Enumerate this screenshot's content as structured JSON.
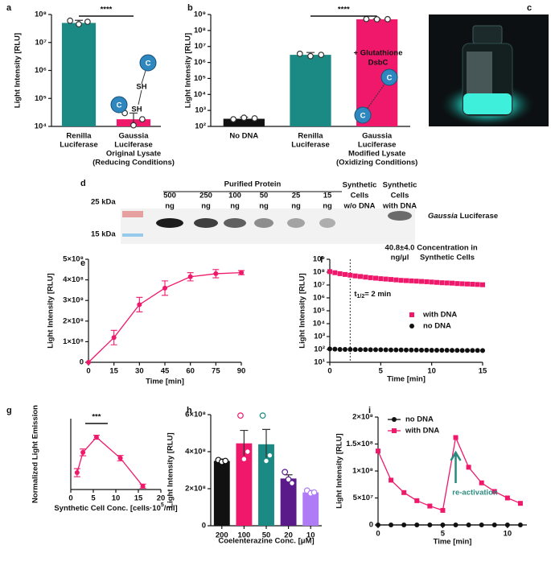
{
  "photo": {
    "panel": "c"
  },
  "gel": {
    "panel": "d",
    "group_label": "Purified Protein",
    "lanes": [
      [
        "500",
        "ng"
      ],
      [
        "250",
        "ng"
      ],
      [
        "100",
        "ng"
      ],
      [
        "50",
        "ng"
      ],
      [
        "25",
        "ng"
      ],
      [
        "15",
        "ng"
      ],
      [
        "Synthetic",
        "Cells",
        "w/o DNA"
      ],
      [
        "Synthetic",
        "Cells",
        "with DNA"
      ]
    ],
    "markers": [
      "25 kDa",
      "15 kDa"
    ],
    "band_label": [
      "Gaussia",
      "Luciferase"
    ],
    "concentration": [
      "40.8±4.0",
      "ng/μl"
    ],
    "concentration_label": [
      "Concentration in",
      "Synthetic Cells"
    ]
  },
  "chart_data": [
    {
      "type": "bar",
      "panel": "a",
      "y_label": "Light Intensity [RLU]",
      "log_y": true,
      "ylim": [
        10000,
        100000000
      ],
      "yticks": [
        {
          "value": 10000,
          "label": "10⁴"
        },
        {
          "value": 100000,
          "label": "10⁵"
        },
        {
          "value": 1000000,
          "label": "10⁶"
        },
        {
          "value": 10000000,
          "label": "10⁷"
        },
        {
          "value": 100000000,
          "label": "10⁸"
        }
      ],
      "categories": [
        [
          "Renilla",
          "Luciferase"
        ],
        [
          "Gaussia",
          "Luciferase",
          "Original Lysate",
          "(Reducing Conditions)"
        ]
      ],
      "values": [
        50000000,
        18000
      ],
      "errors": [
        12000000,
        12000
      ],
      "points": [
        [
          60000000,
          45000000,
          55000000
        ],
        [
          30000,
          11000,
          18000
        ]
      ],
      "colors": [
        "#1b8a84",
        "#f0186b"
      ],
      "significance": "****",
      "diagram_labels": [
        "C",
        "SH",
        "SH",
        "C"
      ]
    },
    {
      "type": "bar",
      "panel": "b",
      "y_label": "Light Intensity [RLU]",
      "log_y": true,
      "ylim": [
        100,
        1000000000
      ],
      "yticks": [
        {
          "value": 100,
          "label": "10²"
        },
        {
          "value": 1000,
          "label": "10³"
        },
        {
          "value": 10000,
          "label": "10⁴"
        },
        {
          "value": 100000,
          "label": "10⁵"
        },
        {
          "value": 1000000,
          "label": "10⁶"
        },
        {
          "value": 10000000,
          "label": "10⁷"
        },
        {
          "value": 100000000,
          "label": "10⁸"
        },
        {
          "value": 1000000000,
          "label": "10⁹"
        }
      ],
      "categories": [
        [
          "No DNA"
        ],
        [
          "Renilla",
          "Luciferase"
        ],
        [
          "Gaussia",
          "Luciferase",
          "Modified Lysate",
          "(Oxidizing Conditions)"
        ]
      ],
      "values": [
        300,
        3000000,
        500000000
      ],
      "errors": [
        80,
        1200000,
        40000000
      ],
      "points": [
        [
          280,
          350,
          320
        ],
        [
          3500000,
          2500000,
          3000000
        ],
        [
          520000000,
          500000000,
          510000000
        ]
      ],
      "colors": [
        "#111111",
        "#1b8a84",
        "#f0186b"
      ],
      "significance": "****",
      "annotation": [
        "+ Glutathione",
        "DsbC"
      ],
      "diagram_labels": [
        "C",
        "C"
      ]
    },
    {
      "type": "line",
      "panel": "e",
      "y_label": "Light Intensity [RLU]",
      "x_label": "Time [min]",
      "x": [
        0,
        15,
        30,
        45,
        60,
        75,
        90
      ],
      "xlim": [
        0,
        90
      ],
      "xticks": [
        0,
        15,
        30,
        45,
        60,
        75,
        90
      ],
      "ylim": [
        0,
        500000000
      ],
      "yticks": [
        0,
        {
          "value": 100000000,
          "label": "1×10⁸"
        },
        {
          "value": 200000000,
          "label": "2×10⁸"
        },
        {
          "value": 300000000,
          "label": "3×10⁸"
        },
        {
          "value": 400000000,
          "label": "4×10⁸"
        },
        {
          "value": 500000000,
          "label": "5×10⁸"
        }
      ],
      "series": [
        {
          "color": "#f0186b",
          "marker": "circle",
          "values": [
            0,
            120000000,
            280000000,
            360000000,
            415000000,
            430000000,
            435000000
          ],
          "errors": [
            0,
            35000000,
            35000000,
            35000000,
            20000000,
            20000000,
            10000000
          ]
        }
      ]
    },
    {
      "type": "scatter",
      "panel": "f",
      "y_label": "Light Intensity [RLU]",
      "x_label": "Time [min]",
      "log_y": true,
      "x": [
        0,
        0.5,
        1,
        1.5,
        2,
        2.5,
        3,
        3.5,
        4,
        4.5,
        5,
        5.5,
        6,
        6.5,
        7,
        7.5,
        8,
        8.5,
        9,
        9.5,
        10,
        10.5,
        11,
        11.5,
        12,
        12.5,
        13,
        13.5,
        14,
        14.5,
        15
      ],
      "xlim": [
        0,
        15
      ],
      "xticks": [
        0,
        5,
        10,
        15
      ],
      "ylim": [
        10,
        1000000000
      ],
      "yticks": [
        {
          "value": 10,
          "label": "10¹"
        },
        {
          "value": 100,
          "label": "10²"
        },
        {
          "value": 1000,
          "label": "10³"
        },
        {
          "value": 10000,
          "label": "10⁴"
        },
        {
          "value": 100000,
          "label": "10⁵"
        },
        {
          "value": 1000000,
          "label": "10⁶"
        },
        {
          "value": 10000000,
          "label": "10⁷"
        },
        {
          "value": 100000000,
          "label": "10⁸"
        },
        {
          "value": 1000000000,
          "label": "10⁹"
        }
      ],
      "series": [
        {
          "name": "with DNA",
          "color": "#f0186b",
          "marker": "square",
          "values": [
            110000000,
            90000000,
            76000000,
            66000000,
            58000000,
            51000000,
            46000000,
            41000000,
            37000000,
            34000000,
            31000000,
            29000000,
            27000000,
            25000000,
            23000000,
            22000000,
            21000000,
            20000000,
            19000000,
            18000000,
            17000000,
            16000000,
            15000000,
            14500000,
            14000000,
            13000000,
            12500000,
            12000000,
            11500000,
            11000000,
            10500000
          ]
        },
        {
          "name": "no DNA",
          "color": "#111111",
          "marker": "circle",
          "values": [
            110,
            105,
            100,
            100,
            100,
            98,
            97,
            96,
            95,
            95,
            94,
            93,
            92,
            92,
            91,
            90,
            90,
            89,
            88,
            88,
            87,
            87,
            86,
            86,
            85,
            85,
            84,
            84,
            83,
            83,
            82
          ]
        }
      ],
      "legend": "center right",
      "vline": 2,
      "annotation_parts": [
        "t",
        "1/2",
        "= 2 min"
      ]
    },
    {
      "type": "line",
      "panel": "g",
      "y_label": "Normalized Light Emission",
      "x_label_parts": [
        "Synthetic Cell Conc. [cells·10",
        "5",
        "/ml]"
      ],
      "x": [
        1.4,
        2.7,
        5.7,
        11,
        16
      ],
      "xlim": [
        0,
        20
      ],
      "xticks": [
        0,
        5,
        10,
        15,
        20
      ],
      "ylim": [
        0.9,
        3
      ],
      "series": [
        {
          "color": "#f0186b",
          "marker": "circle",
          "values": [
            1.4,
            2.0,
            2.45,
            1.83,
            1.0
          ],
          "errors": [
            0.12,
            0.1,
            0.06,
            0.08,
            0.06
          ]
        }
      ],
      "significance": "***"
    },
    {
      "type": "bar",
      "panel": "h",
      "y_label": "Light Intensity [RLU]",
      "x_label": "Coelenterazine Conc. [μM]",
      "ylim": [
        0,
        600000000
      ],
      "yticks": [
        0,
        {
          "value": 200000000,
          "label": "2×10⁸"
        },
        {
          "value": 400000000,
          "label": "4×10⁸"
        },
        {
          "value": 600000000,
          "label": "6×10⁸"
        }
      ],
      "categories": [
        "200",
        "100",
        "50",
        "20",
        "10"
      ],
      "values": [
        350000000,
        445000000,
        440000000,
        255000000,
        180000000
      ],
      "errors": [
        10000000,
        70000000,
        80000000,
        20000000,
        10000000
      ],
      "points": [
        [
          355000000,
          345000000,
          350000000
        ],
        [
          595000000,
          360000000,
          400000000
        ],
        [
          595000000,
          350000000,
          380000000
        ],
        [
          290000000,
          250000000,
          230000000
        ],
        [
          190000000,
          175000000,
          180000000
        ]
      ],
      "colors": [
        "#111111",
        "#f0186b",
        "#1b8a84",
        "#5b1a8a",
        "#b07cf5"
      ]
    },
    {
      "type": "line",
      "panel": "i",
      "y_label": "Light Intensity [RLU]",
      "x_label": "Time [min]",
      "x": [
        0,
        1,
        2,
        3,
        4,
        5,
        6,
        7,
        8,
        9,
        10,
        11
      ],
      "xlim": [
        0,
        11.5
      ],
      "xticks": [
        0,
        5,
        10
      ],
      "ylim": [
        0,
        200000000
      ],
      "yticks": [
        0,
        {
          "value": 50000000,
          "label": "5×10⁷"
        },
        {
          "value": 100000000,
          "label": "1×10⁸"
        },
        {
          "value": 150000000,
          "label": "1.5×10⁸"
        },
        {
          "value": 200000000,
          "label": "2×10⁸"
        }
      ],
      "series": [
        {
          "name": "no DNA",
          "color": "#111111",
          "marker": "circle",
          "values": [
            0,
            0,
            0,
            0,
            0,
            0,
            0,
            0,
            0,
            0,
            0,
            0
          ]
        },
        {
          "name": "with DNA",
          "color": "#f0186b",
          "marker": "square",
          "values": [
            137000000,
            83000000,
            60000000,
            45000000,
            35000000,
            27000000,
            162000000,
            107000000,
            78000000,
            62000000,
            50000000,
            40000000
          ]
        }
      ],
      "legend": "upper center",
      "annotation": "re-activation"
    }
  ]
}
